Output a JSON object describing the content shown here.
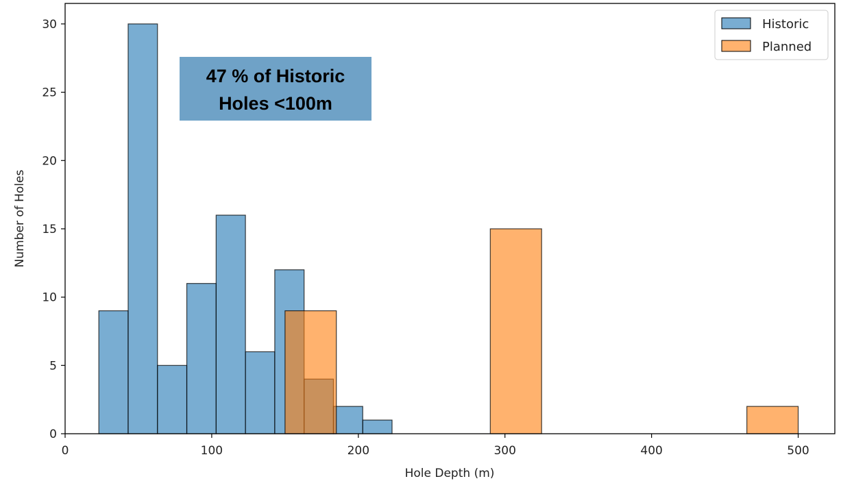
{
  "chart_data": {
    "type": "bar",
    "title": "",
    "xlabel": "Hole Depth (m)",
    "ylabel": "Number of Holes",
    "xlim": [
      0,
      525
    ],
    "ylim": [
      0,
      31.5
    ],
    "xticks": [
      0,
      100,
      200,
      300,
      400,
      500
    ],
    "yticks": [
      0,
      5,
      10,
      15,
      20,
      25,
      30
    ],
    "grid": false,
    "legend": "top-right",
    "series": [
      {
        "name": "Historic",
        "color": "#1f77b4",
        "opacity": 0.6,
        "bins": [
          {
            "x0": 23,
            "x1": 43,
            "count": 9
          },
          {
            "x0": 43,
            "x1": 63,
            "count": 30
          },
          {
            "x0": 63,
            "x1": 83,
            "count": 5
          },
          {
            "x0": 83,
            "x1": 103,
            "count": 11
          },
          {
            "x0": 103,
            "x1": 123,
            "count": 16
          },
          {
            "x0": 123,
            "x1": 143,
            "count": 6
          },
          {
            "x0": 143,
            "x1": 163,
            "count": 12
          },
          {
            "x0": 163,
            "x1": 183,
            "count": 4
          },
          {
            "x0": 183,
            "x1": 203,
            "count": 2
          },
          {
            "x0": 203,
            "x1": 223,
            "count": 1
          }
        ]
      },
      {
        "name": "Planned",
        "color": "#ff7f0e",
        "opacity": 0.6,
        "bins": [
          {
            "x0": 150,
            "x1": 185,
            "count": 9
          },
          {
            "x0": 290,
            "x1": 325,
            "count": 15
          },
          {
            "x0": 465,
            "x1": 500,
            "count": 2
          }
        ]
      }
    ],
    "annotation": {
      "lines": [
        "47 % of Historic",
        "Holes <100m"
      ],
      "background": "#6fa2c7"
    }
  }
}
